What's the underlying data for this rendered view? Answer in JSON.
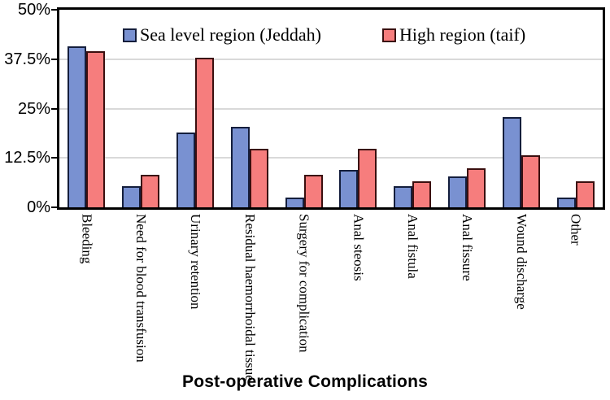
{
  "chart_data": {
    "type": "bar",
    "title": "",
    "xlabel": "Post-operative Complications",
    "ylabel": "",
    "ylim": [
      0,
      50
    ],
    "grid": true,
    "grid_values": [
      12.5,
      25,
      37.5
    ],
    "legend_position": "top-inside",
    "y_ticks": [
      {
        "label": "50%",
        "value": 50
      },
      {
        "label": "37.5%",
        "value": 37.5
      },
      {
        "label": "25%",
        "value": 25
      },
      {
        "label": "12.5%",
        "value": 12.5
      },
      {
        "label": "0%",
        "value": 0
      }
    ],
    "categories": [
      "Bleeding",
      "Need for blood transfusion",
      "Urinary retention",
      "Residual haemorrhoidal tissue",
      "Surgery for complication",
      "Anal steosis",
      "Anal fistula",
      "Anal fissure",
      "Wound discharge",
      "Other"
    ],
    "series": [
      {
        "name": "Sea level region (Jeddah)",
        "key": "jeddah",
        "color": "#7991d1",
        "border_color": "#141e3c",
        "values": [
          40.8,
          5.3,
          18.9,
          20.3,
          2.5,
          9.4,
          5.3,
          7.8,
          22.9,
          2.5
        ]
      },
      {
        "name": "High region (taif)",
        "key": "taif",
        "color": "#f67d7d",
        "border_color": "#3a0f0f",
        "values": [
          39.5,
          8.2,
          37.9,
          14.8,
          8.2,
          14.8,
          6.6,
          9.8,
          13.1,
          6.6
        ]
      }
    ],
    "colors": {
      "axis": "#000000",
      "gridline": "#d9d9d9",
      "background": "#ffffff"
    }
  }
}
